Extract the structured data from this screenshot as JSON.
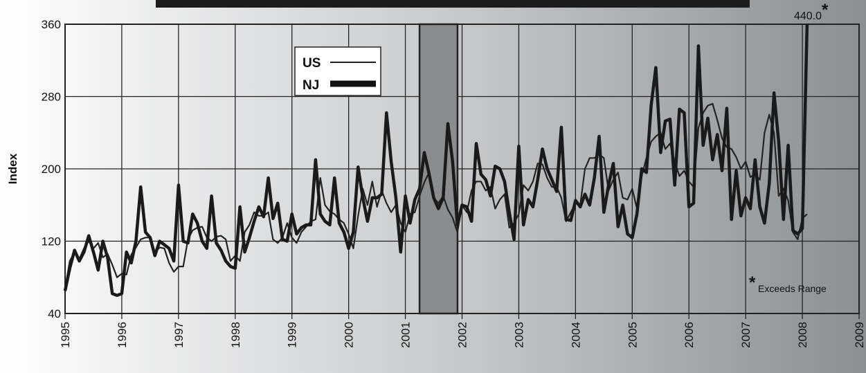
{
  "chart_data": {
    "type": "line",
    "ylabel": "Index",
    "ylim": [
      40,
      360
    ],
    "yticks": [
      40,
      120,
      200,
      280,
      360
    ],
    "xlim": [
      1995,
      2009
    ],
    "xticks": [
      "1995",
      "1996",
      "1997",
      "1998",
      "1999",
      "2000",
      "2001",
      "2002",
      "2003",
      "2004",
      "2005",
      "2006",
      "2007",
      "2008",
      "2009"
    ],
    "grid": true,
    "legend": {
      "placement": "top-left",
      "entries": [
        {
          "label": "US",
          "series": "US"
        },
        {
          "label": "NJ",
          "series": "NJ"
        }
      ]
    },
    "shaded_region": {
      "start": 2001.25,
      "end": 2001.92
    },
    "annotations": {
      "peak_label": "440.0",
      "star": "*",
      "note": "Exceeds Range"
    },
    "series": [
      {
        "name": "US",
        "color": "#222222",
        "x": [
          1995.0,
          1995.083,
          1995.167,
          1995.25,
          1995.333,
          1995.417,
          1995.5,
          1995.583,
          1995.667,
          1995.75,
          1995.833,
          1995.917,
          1996.0,
          1996.083,
          1996.167,
          1996.25,
          1996.333,
          1996.417,
          1996.5,
          1996.583,
          1996.667,
          1996.75,
          1996.833,
          1996.917,
          1997.0,
          1997.083,
          1997.167,
          1997.25,
          1997.333,
          1997.417,
          1997.5,
          1997.583,
          1997.667,
          1997.75,
          1997.833,
          1997.917,
          1998.0,
          1998.083,
          1998.167,
          1998.25,
          1998.333,
          1998.417,
          1998.5,
          1998.583,
          1998.667,
          1998.75,
          1998.833,
          1998.917,
          1999.0,
          1999.083,
          1999.167,
          1999.25,
          1999.333,
          1999.417,
          1999.5,
          1999.583,
          1999.667,
          1999.75,
          1999.833,
          1999.917,
          2000.0,
          2000.083,
          2000.167,
          2000.25,
          2000.333,
          2000.417,
          2000.5,
          2000.583,
          2000.667,
          2000.75,
          2000.833,
          2000.917,
          2001.0,
          2001.083,
          2001.167,
          2001.25,
          2001.333,
          2001.417,
          2001.5,
          2001.583,
          2001.667,
          2001.75,
          2001.833,
          2001.917,
          2002.0,
          2002.083,
          2002.167,
          2002.25,
          2002.333,
          2002.417,
          2002.5,
          2002.583,
          2002.667,
          2002.75,
          2002.833,
          2002.917,
          2003.0,
          2003.083,
          2003.167,
          2003.25,
          2003.333,
          2003.417,
          2003.5,
          2003.583,
          2003.667,
          2003.75,
          2003.833,
          2003.917,
          2004.0,
          2004.083,
          2004.167,
          2004.25,
          2004.333,
          2004.417,
          2004.5,
          2004.583,
          2004.667,
          2004.75,
          2004.833,
          2004.917,
          2005.0,
          2005.083,
          2005.167,
          2005.25,
          2005.333,
          2005.417,
          2005.5,
          2005.583,
          2005.667,
          2005.75,
          2005.833,
          2005.917,
          2006.0,
          2006.083,
          2006.167,
          2006.25,
          2006.333,
          2006.417,
          2006.5,
          2006.583,
          2006.667,
          2006.75,
          2006.833,
          2006.917,
          2007.0,
          2007.083,
          2007.167,
          2007.25,
          2007.333,
          2007.417,
          2007.5,
          2007.583,
          2007.667,
          2007.75,
          2007.833,
          2007.917,
          2008.0,
          2008.083
        ],
        "values": [
          68,
          98,
          108,
          100,
          112,
          120,
          112,
          118,
          102,
          106,
          94,
          80,
          84,
          83,
          105,
          113,
          122,
          124,
          124,
          108,
          113,
          112,
          96,
          86,
          92,
          92,
          122,
          132,
          135,
          136,
          124,
          120,
          125,
          126,
          122,
          98,
          104,
          98,
          130,
          138,
          152,
          148,
          148,
          152,
          122,
          118,
          124,
          140,
          124,
          118,
          130,
          136,
          142,
          144,
          190,
          160,
          153,
          150,
          144,
          140,
          128,
          112,
          148,
          178,
          160,
          186,
          158,
          176,
          162,
          152,
          160,
          140,
          130,
          150,
          152,
          170,
          185,
          196,
          168,
          162,
          170,
          155,
          146,
          130,
          160,
          152,
          176,
          186,
          186,
          176,
          180,
          156,
          166,
          172,
          135,
          140,
          150,
          182,
          176,
          186,
          206,
          205,
          190,
          180,
          180,
          168,
          142,
          152,
          162,
          160,
          200,
          212,
          212,
          216,
          212,
          176,
          188,
          196,
          168,
          166,
          178,
          156,
          192,
          212,
          230,
          236,
          240,
          222,
          228,
          208,
          192,
          198,
          186,
          180,
          245,
          262,
          270,
          272,
          254,
          234,
          224,
          222,
          213,
          200,
          208,
          191,
          194,
          188,
          240,
          260,
          240,
          170,
          178,
          165,
          130,
          122,
          145,
          150
        ]
      },
      {
        "name": "NJ",
        "color": "#1a1a1a",
        "x": [
          1995.0,
          1995.083,
          1995.167,
          1995.25,
          1995.333,
          1995.417,
          1995.5,
          1995.583,
          1995.667,
          1995.75,
          1995.833,
          1995.917,
          1996.0,
          1996.083,
          1996.167,
          1996.25,
          1996.333,
          1996.417,
          1996.5,
          1996.583,
          1996.667,
          1996.75,
          1996.833,
          1996.917,
          1997.0,
          1997.083,
          1997.167,
          1997.25,
          1997.333,
          1997.417,
          1997.5,
          1997.583,
          1997.667,
          1997.75,
          1997.833,
          1997.917,
          1998.0,
          1998.083,
          1998.167,
          1998.25,
          1998.333,
          1998.417,
          1998.5,
          1998.583,
          1998.667,
          1998.75,
          1998.833,
          1998.917,
          1999.0,
          1999.083,
          1999.167,
          1999.25,
          1999.333,
          1999.417,
          1999.5,
          1999.583,
          1999.667,
          1999.75,
          1999.833,
          1999.917,
          2000.0,
          2000.083,
          2000.167,
          2000.25,
          2000.333,
          2000.417,
          2000.5,
          2000.583,
          2000.667,
          2000.75,
          2000.833,
          2000.917,
          2001.0,
          2001.083,
          2001.167,
          2001.25,
          2001.333,
          2001.417,
          2001.5,
          2001.583,
          2001.667,
          2001.75,
          2001.833,
          2001.917,
          2002.0,
          2002.083,
          2002.167,
          2002.25,
          2002.333,
          2002.417,
          2002.5,
          2002.583,
          2002.667,
          2002.75,
          2002.833,
          2002.917,
          2003.0,
          2003.083,
          2003.167,
          2003.25,
          2003.333,
          2003.417,
          2003.5,
          2003.583,
          2003.667,
          2003.75,
          2003.833,
          2003.917,
          2004.0,
          2004.083,
          2004.167,
          2004.25,
          2004.333,
          2004.417,
          2004.5,
          2004.583,
          2004.667,
          2004.75,
          2004.833,
          2004.917,
          2005.0,
          2005.083,
          2005.167,
          2005.25,
          2005.333,
          2005.417,
          2005.5,
          2005.583,
          2005.667,
          2005.75,
          2005.833,
          2005.917,
          2006.0,
          2006.083,
          2006.167,
          2006.25,
          2006.333,
          2006.417,
          2006.5,
          2006.583,
          2006.667,
          2006.75,
          2006.833,
          2006.917,
          2007.0,
          2007.083,
          2007.167,
          2007.25,
          2007.333,
          2007.417,
          2007.5,
          2007.583,
          2007.667,
          2007.75,
          2007.833,
          2007.917,
          2008.0,
          2008.083
        ],
        "values": [
          65,
          90,
          110,
          98,
          108,
          126,
          108,
          88,
          120,
          102,
          62,
          60,
          62,
          108,
          96,
          120,
          180,
          130,
          124,
          104,
          120,
          116,
          112,
          98,
          182,
          120,
          118,
          150,
          140,
          120,
          112,
          170,
          118,
          110,
          98,
          92,
          90,
          158,
          108,
          124,
          142,
          158,
          147,
          190,
          145,
          162,
          122,
          120,
          150,
          128,
          135,
          138,
          138,
          210,
          150,
          142,
          138,
          190,
          140,
          130,
          112,
          130,
          202,
          168,
          142,
          168,
          168,
          172,
          262,
          208,
          168,
          108,
          170,
          140,
          166,
          178,
          218,
          195,
          168,
          156,
          168,
          250,
          208,
          138,
          160,
          158,
          142,
          228,
          194,
          188,
          170,
          203,
          200,
          186,
          152,
          122,
          225,
          138,
          166,
          158,
          188,
          222,
          200,
          188,
          175,
          246,
          144,
          143,
          165,
          158,
          172,
          160,
          190,
          236,
          152,
          182,
          206,
          136,
          160,
          128,
          124,
          150,
          200,
          196,
          270,
          312,
          218,
          253,
          255,
          182,
          266,
          262,
          158,
          162,
          336,
          226,
          256,
          210,
          238,
          198,
          267,
          144,
          198,
          148,
          168,
          156,
          210,
          158,
          140,
          184,
          284,
          230,
          144,
          226,
          132,
          128,
          134,
          440
        ]
      }
    ]
  }
}
